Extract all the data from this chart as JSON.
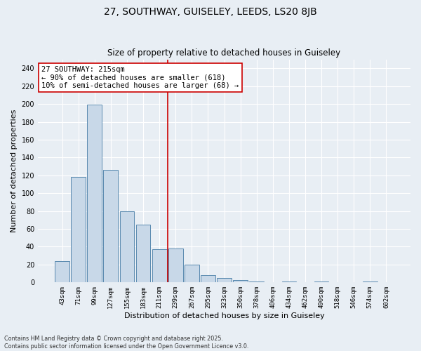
{
  "title_line1": "27, SOUTHWAY, GUISELEY, LEEDS, LS20 8JB",
  "title_line2": "Size of property relative to detached houses in Guiseley",
  "xlabel": "Distribution of detached houses by size in Guiseley",
  "ylabel": "Number of detached properties",
  "categories": [
    "43sqm",
    "71sqm",
    "99sqm",
    "127sqm",
    "155sqm",
    "183sqm",
    "211sqm",
    "239sqm",
    "267sqm",
    "295sqm",
    "323sqm",
    "350sqm",
    "378sqm",
    "406sqm",
    "434sqm",
    "462sqm",
    "490sqm",
    "518sqm",
    "546sqm",
    "574sqm",
    "602sqm"
  ],
  "values": [
    24,
    118,
    199,
    126,
    80,
    65,
    37,
    38,
    20,
    8,
    5,
    3,
    1,
    0,
    1,
    0,
    1,
    0,
    0,
    1,
    0
  ],
  "bar_color": "#c8d8e8",
  "bar_edge_color": "#5a8ab0",
  "background_color": "#e8eef4",
  "grid_color": "#ffffff",
  "vline_x": 6.5,
  "vline_color": "#cc0000",
  "annotation_text": "27 SOUTHWAY: 215sqm\n← 90% of detached houses are smaller (618)\n10% of semi-detached houses are larger (68) →",
  "annotation_box_color": "#ffffff",
  "annotation_box_edge": "#cc0000",
  "footnote": "Contains HM Land Registry data © Crown copyright and database right 2025.\nContains public sector information licensed under the Open Government Licence v3.0.",
  "ylim": [
    0,
    250
  ],
  "yticks": [
    0,
    20,
    40,
    60,
    80,
    100,
    120,
    140,
    160,
    180,
    200,
    220,
    240
  ]
}
